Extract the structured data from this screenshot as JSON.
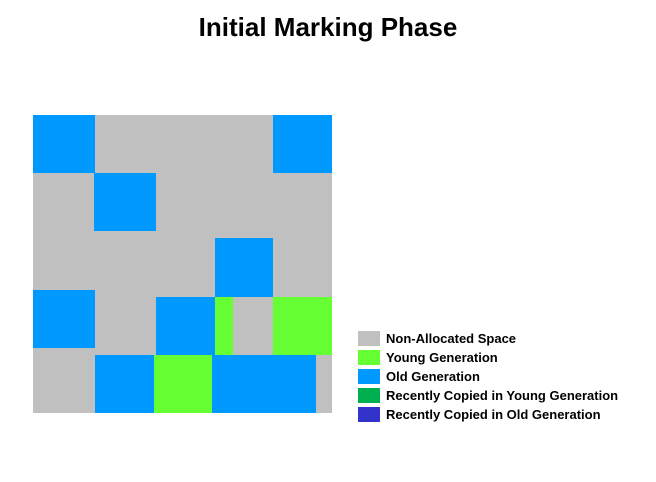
{
  "title": "Initial Marking Phase",
  "colors": {
    "non_allocated": "#c0c0c0",
    "young": "#66ff33",
    "old": "#0099ff",
    "recent_young": "#00b050",
    "recent_old": "#3333cc"
  },
  "legend": [
    {
      "label": "Non-Allocated Space",
      "color": "#c0c0c0"
    },
    {
      "label": "Young Generation",
      "color": "#66ff33"
    },
    {
      "label": "Old Generation",
      "color": "#0099ff"
    },
    {
      "label": "Recently Copied in Young Generation",
      "color": "#00b050"
    },
    {
      "label": "Recently Copied in Old Generation",
      "color": "#3333cc"
    }
  ]
}
